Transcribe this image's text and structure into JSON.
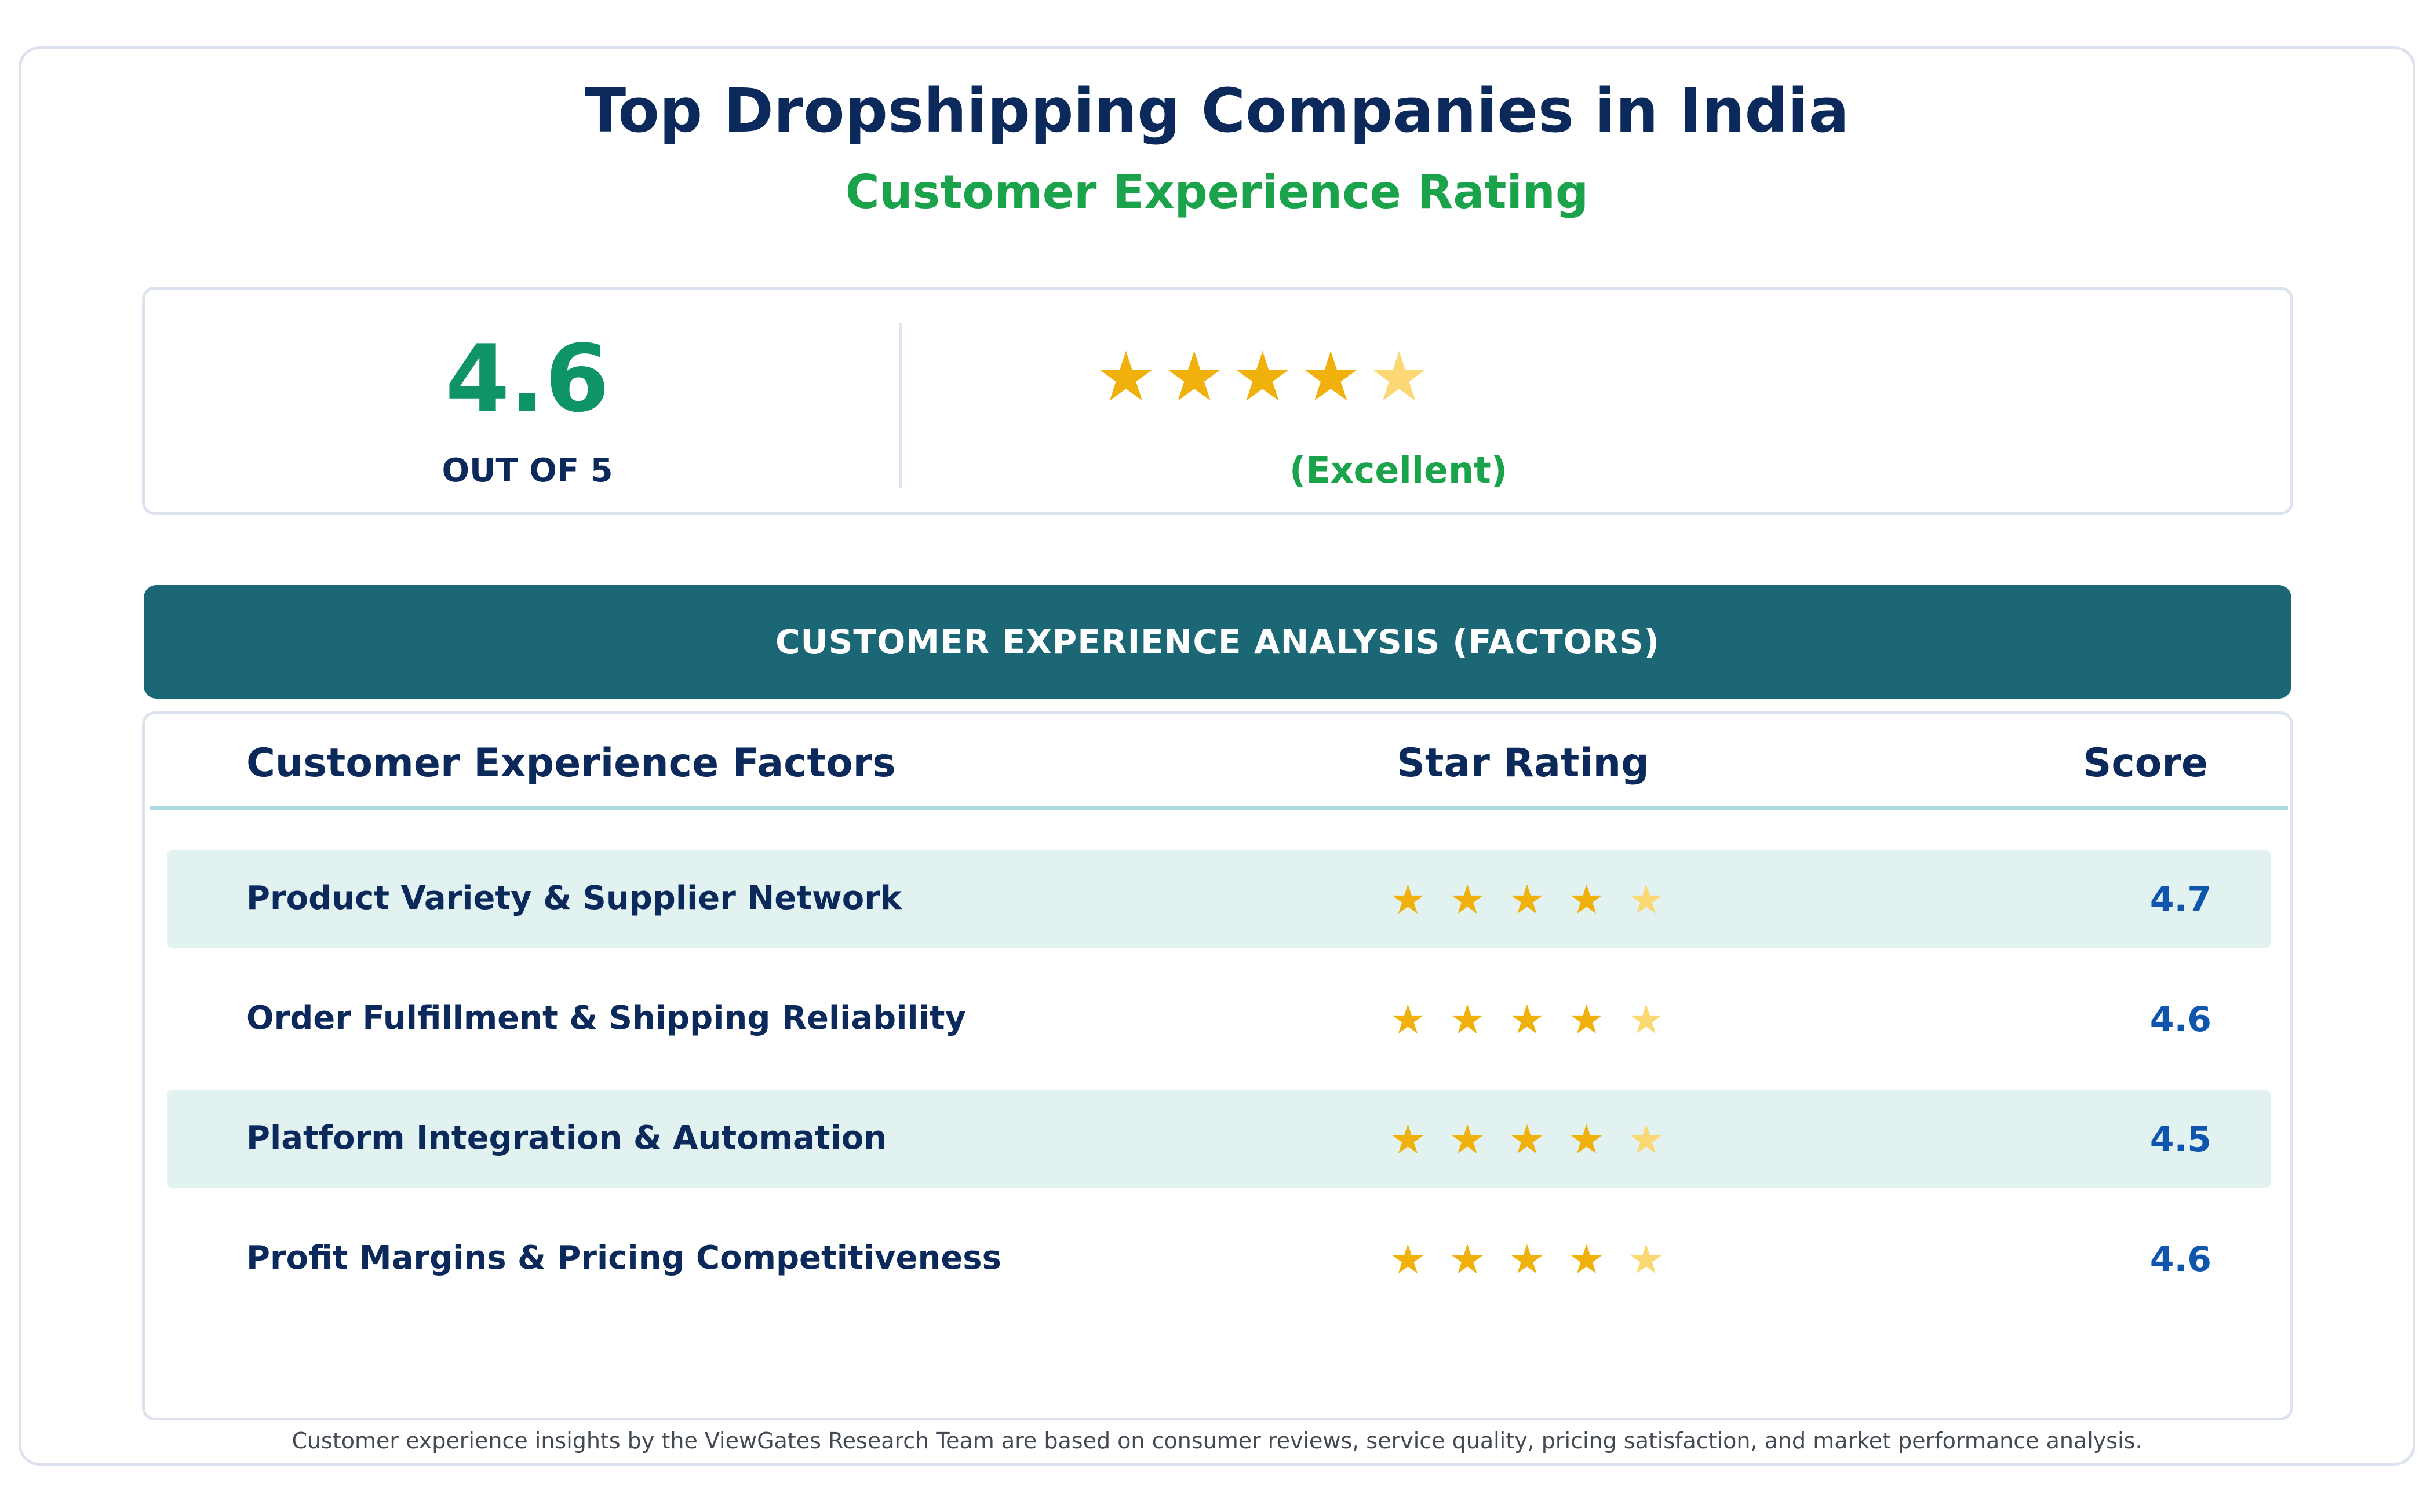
{
  "header": {
    "title": "Top Dropshipping Companies in India",
    "subtitle": "Customer Experience Rating"
  },
  "summary": {
    "score": "4.6",
    "score_scale": "OUT OF 5",
    "rating_value": 4.6,
    "stars_total": 5,
    "verdict": "(Excellent)"
  },
  "banner": {
    "label": "CUSTOMER EXPERIENCE ANALYSIS (FACTORS)"
  },
  "table": {
    "columns": [
      "Customer Experience Factors",
      "Star Rating",
      "Score"
    ],
    "rows": [
      {
        "factor": "Product Variety & Supplier Network",
        "rating_value": 4.7,
        "score": "4.7"
      },
      {
        "factor": "Order Fulfillment & Shipping Reliability",
        "rating_value": 4.6,
        "score": "4.6"
      },
      {
        "factor": "Platform Integration & Automation",
        "rating_value": 4.5,
        "score": "4.5"
      },
      {
        "factor": "Profit Margins & Pricing Competitiveness",
        "rating_value": 4.6,
        "score": "4.6"
      }
    ]
  },
  "footnote": "Customer experience insights by the ViewGates Research Team are based on consumer reviews, service quality, pricing satisfaction, and market performance analysis.",
  "colors": {
    "navy": "#0b2a5b",
    "green": "#1aa34a",
    "teal_banner": "#1c6775",
    "star_full": "#f0b10d",
    "star_partial": "#fbd873",
    "score_blue": "#0e55ad",
    "row_shade": "#e1f2f1"
  },
  "icons": {
    "star": "star-icon"
  }
}
